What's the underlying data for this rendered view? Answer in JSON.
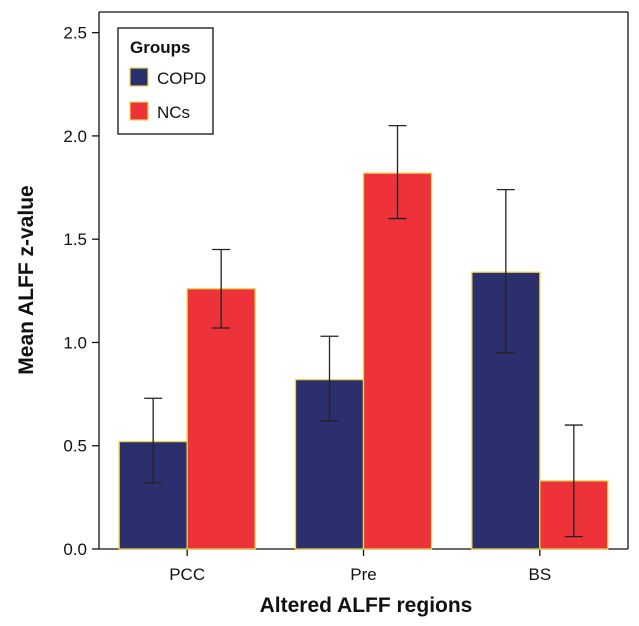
{
  "chart_data": {
    "type": "bar",
    "xlabel": "Altered ALFF regions",
    "ylabel": "Mean ALFF z-value",
    "categories": [
      "PCC",
      "Pre",
      "BS"
    ],
    "series": [
      {
        "name": "COPD",
        "color": "#2b2f6e",
        "values": [
          0.52,
          0.82,
          1.34
        ],
        "error_low": [
          0.32,
          0.62,
          0.95
        ],
        "error_high": [
          0.73,
          1.03,
          1.74
        ]
      },
      {
        "name": "NCs",
        "color": "#ee3239",
        "values": [
          1.26,
          1.82,
          0.33
        ],
        "error_low": [
          1.07,
          1.6,
          0.06
        ],
        "error_high": [
          1.45,
          2.05,
          0.6
        ]
      }
    ],
    "ylim": [
      0,
      2.6
    ],
    "yticks": [
      "0.0",
      "0.5",
      "1.0",
      "1.5",
      "2.0",
      "2.5"
    ],
    "bar_edge_color": "#e8d44d",
    "grid": false,
    "legend": {
      "title": "Groups",
      "placement": "top-left"
    }
  }
}
